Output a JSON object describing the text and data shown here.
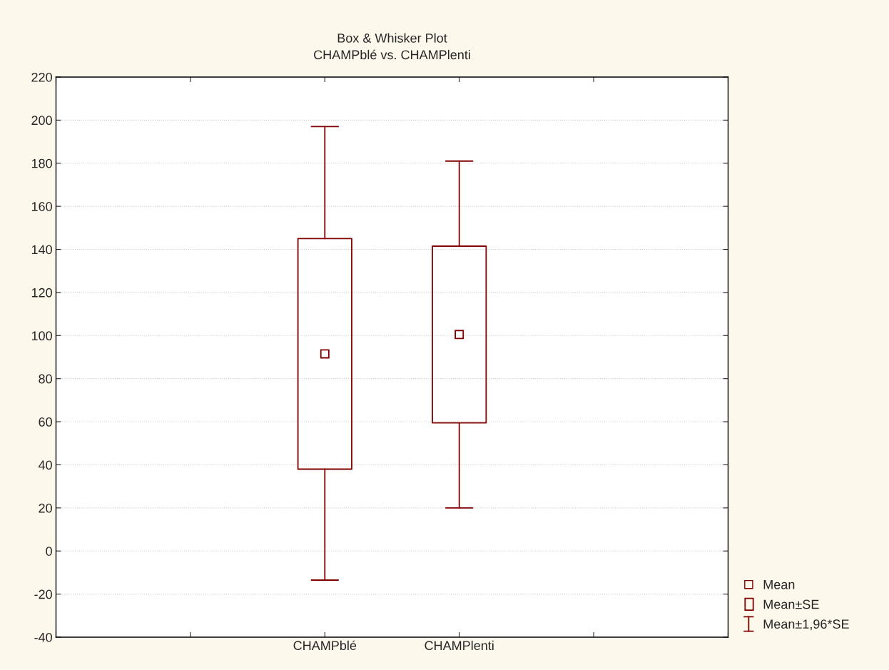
{
  "chart_data": {
    "type": "box",
    "title": "Box & Whisker Plot",
    "subtitle": "CHAMPblé vs. CHAMPlenti",
    "categories": [
      null,
      "CHAMPblé",
      "CHAMPlenti",
      null
    ],
    "series": [
      {
        "color": "#800000",
        "boxes": [
          null,
          {
            "low": -13.5,
            "q1": 38,
            "q3": 145,
            "high": 197,
            "mean": 91.5
          },
          {
            "low": 20,
            "q1": 59.5,
            "q3": 141.5,
            "high": 181,
            "mean": 100.5
          },
          null
        ]
      }
    ],
    "annotations": [
      "Mean",
      "Mean±SE",
      "Mean±1,96*SE"
    ],
    "ylim": [
      -40,
      220
    ],
    "yticks": [
      -40,
      -20,
      0,
      20,
      40,
      60,
      80,
      100,
      120,
      140,
      160,
      180,
      200,
      220
    ],
    "grid": "y",
    "marker": "square"
  }
}
